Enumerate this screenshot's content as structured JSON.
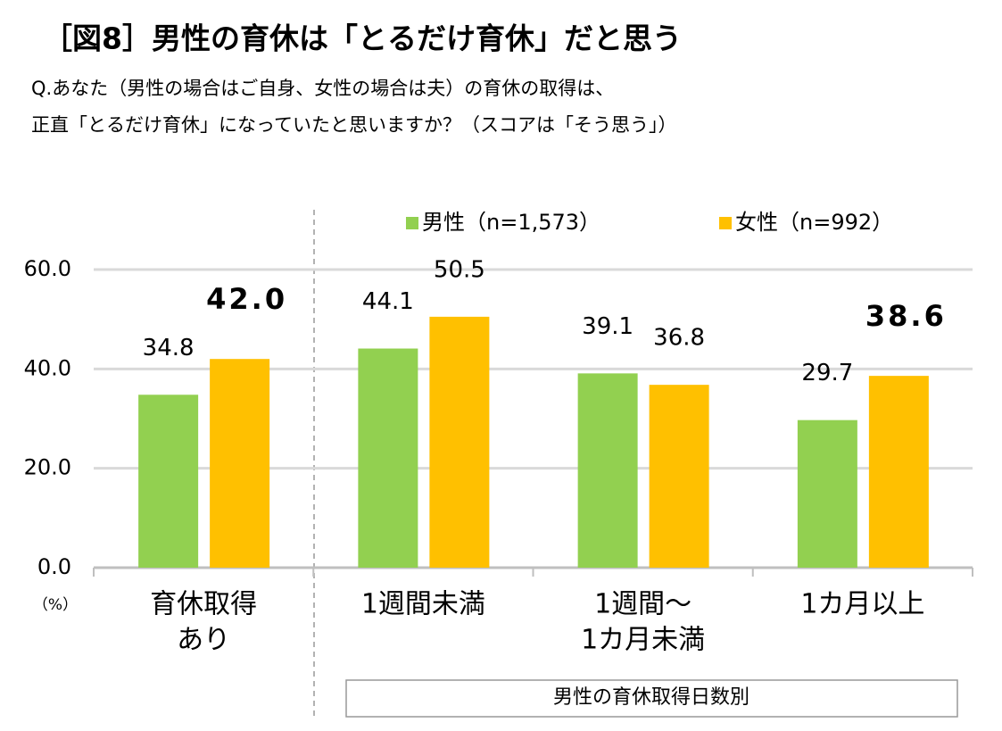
{
  "chart_data": {
    "type": "bar",
    "title": "［図8］男性の育休は「とるだけ育休」だと思う",
    "subtitle": [
      "Q.あなた（男性の場合はご自身、女性の場合は夫）の育休の取得は、",
      "正直「とるだけ育休」になっていたと思いますか？（スコアは「そう思う」）"
    ],
    "y_unit": "（%）",
    "group_label": "男性の育休取得日数別",
    "categories": [
      [
        "育休取得",
        "あり"
      ],
      [
        "1週間未満"
      ],
      [
        "1週間～",
        "1カ月未満"
      ],
      [
        "1カ月以上"
      ]
    ],
    "series": [
      {
        "name": "男性（n=1,573）",
        "color": "#92d050",
        "values": [
          34.8,
          44.1,
          39.1,
          29.7
        ],
        "value_labels": [
          "34.8",
          "44.1",
          "39.1",
          "29.7"
        ],
        "bold": [
          false,
          false,
          false,
          false
        ]
      },
      {
        "name": "女性（n=992）",
        "color": "#ffc000",
        "values": [
          42.0,
          50.5,
          36.8,
          38.6
        ],
        "value_labels": [
          "42.0",
          "50.5",
          "36.8",
          "38.6"
        ],
        "bold": [
          true,
          false,
          false,
          true
        ]
      }
    ],
    "ylim": [
      0,
      60
    ],
    "yticks": [
      {
        "value": 0,
        "label": "0.0"
      },
      {
        "value": 20,
        "label": "20.0"
      },
      {
        "value": 40,
        "label": "40.0"
      },
      {
        "value": 60,
        "label": "60.0"
      }
    ],
    "grid": true,
    "legend": "top"
  }
}
